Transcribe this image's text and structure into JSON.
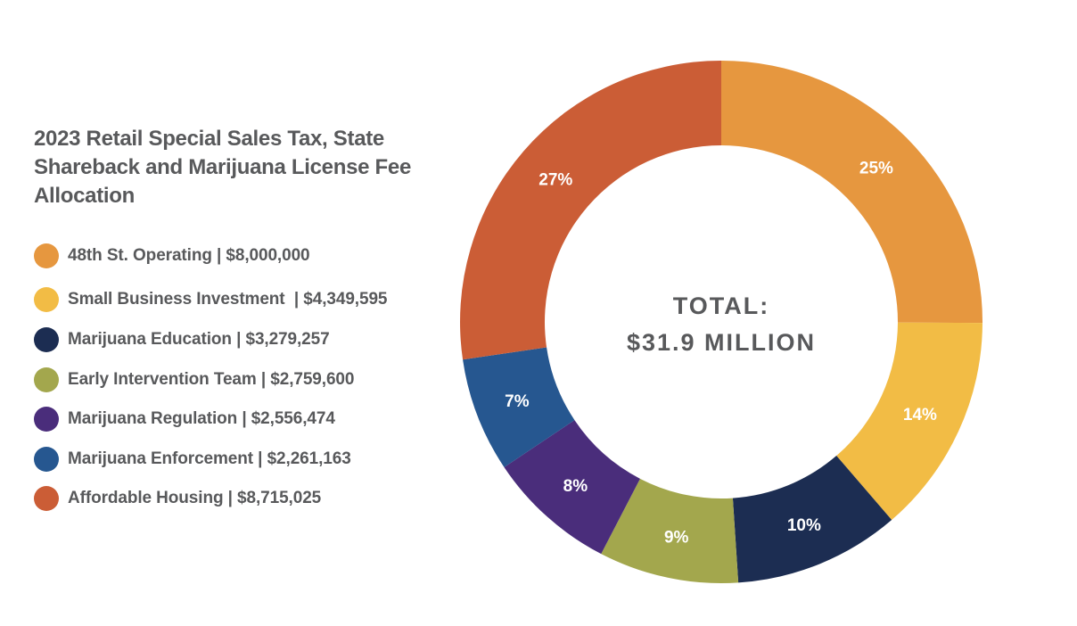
{
  "chart_data": {
    "type": "pie",
    "variant": "donut",
    "title": "2023 Retail Special Sales Tax, State Shareback and Marijuana License Fee Allocation",
    "center_label": {
      "line1": "TOTAL:",
      "line2": "$31.9 MILLION"
    },
    "legend_position": "left",
    "slices": [
      {
        "name": "48th St. Operating",
        "amount": "$8,000,000",
        "value": 8000000,
        "percent_label": "25%",
        "color": "#e6973f"
      },
      {
        "name": "Small Business Investment",
        "amount": "$4,349,595",
        "value": 4349595,
        "percent_label": "14%",
        "color": "#f2bc45"
      },
      {
        "name": "Marijuana Education",
        "amount": "$3,279,257",
        "value": 3279257,
        "percent_label": "10%",
        "color": "#1c2d52"
      },
      {
        "name": "Early Intervention Team",
        "amount": "$2,759,600",
        "value": 2759600,
        "percent_label": "9%",
        "color": "#a3a74d"
      },
      {
        "name": "Marijuana Regulation",
        "amount": "$2,556,474",
        "value": 2556474,
        "percent_label": "8%",
        "color": "#4a2d7b"
      },
      {
        "name": "Marijuana Enforcement",
        "amount": "$2,261,163",
        "value": 2261163,
        "percent_label": "7%",
        "color": "#265790"
      },
      {
        "name": "Affordable Housing",
        "amount": "$8,715,025",
        "value": 8715025,
        "percent_label": "27%",
        "color": "#cb5d36"
      }
    ],
    "legend_labels": [
      "48th St. Operating | $8,000,000",
      "Small Business Investment  | $4,349,595",
      "Marijuana Education | $3,279,257",
      "Early Intervention Team | $2,759,600",
      "Marijuana Regulation | $2,556,474",
      "Marijuana Enforcement | $2,261,163",
      "Affordable Housing | $8,715,025"
    ]
  }
}
